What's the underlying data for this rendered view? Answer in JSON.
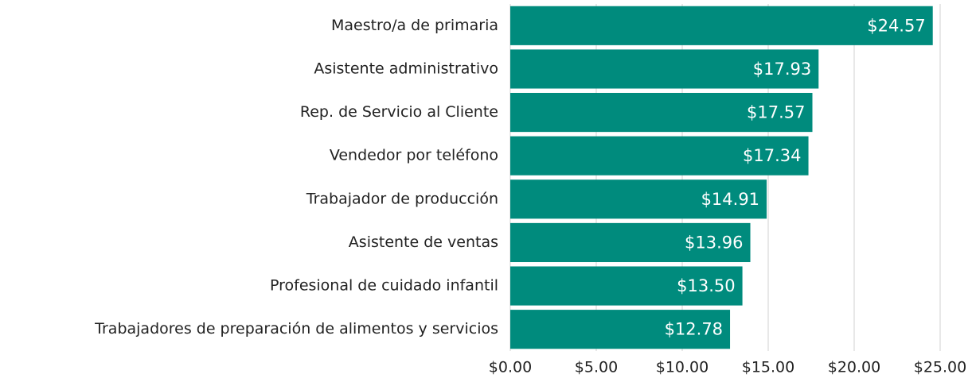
{
  "chart_data": {
    "type": "bar",
    "orientation": "horizontal",
    "categories": [
      "Maestro/a de primaria",
      "Asistente administrativo",
      "Rep. de Servicio al Cliente",
      "Vendedor por teléfono",
      "Trabajador de producción",
      "Asistente de ventas",
      "Profesional de cuidado infantil",
      "Trabajadores de preparación de alimentos y servicios"
    ],
    "values": [
      24.57,
      17.93,
      17.57,
      17.34,
      14.91,
      13.96,
      13.5,
      12.78
    ],
    "value_labels": [
      "$24.57",
      "$17.93",
      "$17.57",
      "$17.34",
      "$14.91",
      "$13.96",
      "$13.50",
      "$12.78"
    ],
    "color": "#008b7d",
    "xlim": [
      0,
      25
    ],
    "xticks": [
      {
        "value": 0,
        "label": "$0.00"
      },
      {
        "value": 5,
        "label": "$5.00"
      },
      {
        "value": 10,
        "label": "$10.00"
      },
      {
        "value": 15,
        "label": "$15.00"
      },
      {
        "value": 20,
        "label": "$20.00"
      },
      {
        "value": 25,
        "label": "$25.00"
      }
    ],
    "grid": true
  }
}
